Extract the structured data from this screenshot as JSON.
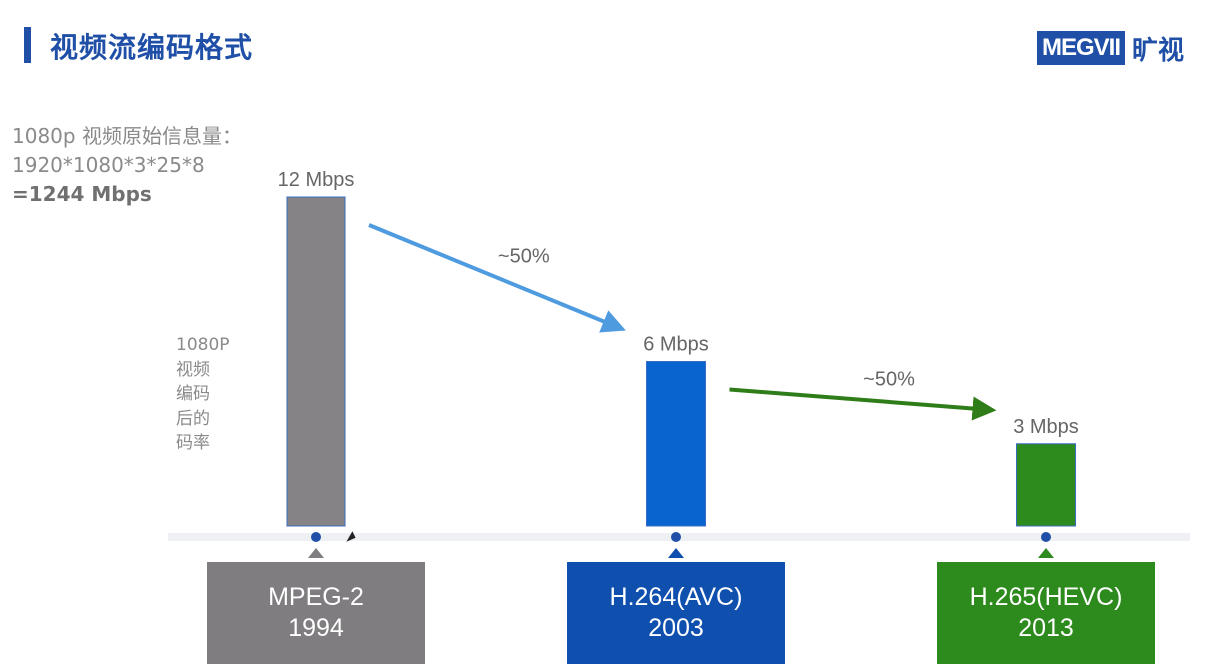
{
  "header": {
    "title": "视频流编码格式",
    "logo_text": "MEGVII",
    "logo_cn": "旷视",
    "accent": "#1f4fa6"
  },
  "info": {
    "line1": "1080p 视频原始信息量：",
    "line2": "1920*1080*3*25*8",
    "line3": "=1244 Mbps"
  },
  "side_label": [
    "1080P",
    "视频",
    "编码",
    "后的",
    "码率"
  ],
  "chart_data": {
    "type": "bar",
    "categories": [
      "MPEG-2",
      "H.264(AVC)",
      "H.265(HEVC)"
    ],
    "years": [
      "1994",
      "2003",
      "2013"
    ],
    "values": [
      12,
      6,
      3
    ],
    "unit": "Mbps",
    "value_labels": [
      "12 Mbps",
      "6 Mbps",
      "3 Mbps"
    ],
    "colors": [
      "#858385",
      "#0a64cf",
      "#2d8a1d"
    ],
    "box_colors": [
      "#7f7d7f",
      "#0f4fae",
      "#2d8a1d"
    ],
    "arrows": [
      {
        "from": 0,
        "to": 1,
        "label": "~50%",
        "color": "#4f9be0"
      },
      {
        "from": 1,
        "to": 2,
        "label": "~50%",
        "color": "#2e7d18"
      }
    ],
    "marker_color": "#1f4fa6"
  }
}
